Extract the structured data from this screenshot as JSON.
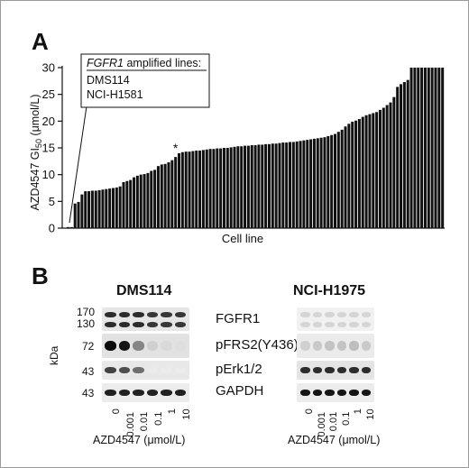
{
  "panel_a": {
    "letter": "A",
    "ylabel_main": "AZD4547 GI",
    "ylabel_sub": "50",
    "ylabel_unit": " (μmol/L)",
    "xlabel": "Cell line",
    "y_ticks": [
      "0",
      "5",
      "10",
      "15",
      "20",
      "25",
      "30"
    ],
    "asterisk": "*",
    "callout": {
      "title_gene": "FGFR1",
      "title_rest": " amplified lines:",
      "lines": [
        "DMS114",
        "NCI-H1581"
      ]
    }
  },
  "chart_data": {
    "type": "bar",
    "title": "",
    "xlabel": "Cell line",
    "ylabel": "AZD4547 GI50 (μmol/L)",
    "ylim": [
      0,
      30
    ],
    "asterisk_index": 31,
    "values": [
      0.2,
      0.2,
      4.6,
      4.9,
      6.3,
      6.9,
      6.9,
      7.0,
      7.0,
      7.1,
      7.2,
      7.3,
      7.4,
      7.5,
      7.6,
      7.8,
      8.6,
      8.8,
      9.0,
      9.5,
      9.8,
      10.0,
      10.1,
      10.3,
      10.7,
      10.9,
      11.6,
      11.9,
      12.0,
      12.3,
      12.7,
      13.3,
      14.0,
      14.2,
      14.3,
      14.3,
      14.4,
      14.5,
      14.5,
      14.6,
      14.7,
      14.8,
      14.8,
      14.9,
      14.9,
      15.0,
      15.0,
      15.1,
      15.2,
      15.3,
      15.3,
      15.4,
      15.4,
      15.5,
      15.5,
      15.6,
      15.6,
      15.7,
      15.7,
      15.8,
      15.8,
      15.9,
      16.0,
      16.0,
      16.1,
      16.1,
      16.2,
      16.3,
      16.4,
      16.5,
      16.6,
      16.7,
      16.8,
      16.9,
      17.0,
      17.2,
      17.4,
      17.6,
      18.0,
      18.4,
      19.0,
      19.5,
      19.9,
      20.1,
      20.4,
      20.8,
      21.1,
      21.3,
      21.5,
      21.7,
      22.1,
      22.5,
      23.0,
      23.5,
      24.5,
      26.4,
      26.9,
      27.3,
      27.7,
      30,
      30,
      30,
      30,
      30,
      30,
      30,
      30,
      30,
      30
    ]
  },
  "panel_b": {
    "letter": "B",
    "left_title": "DMS114",
    "right_title": "NCI-H1975",
    "kda_label": "kDa",
    "markers": [
      "170",
      "130",
      "72",
      "43",
      "43"
    ],
    "proteins": [
      "FGFR1",
      "pFRS2(Y436)",
      "pErk1/2",
      "GAPDH"
    ],
    "doses": [
      "0",
      "0.001",
      "0.01",
      "0.1",
      "1",
      "10"
    ],
    "xlabel": "AZD4547 (μmol/L)",
    "left_intensity": {
      "FGFR1": [
        0.85,
        0.85,
        0.85,
        0.8,
        0.8,
        0.8
      ],
      "pFRS2": [
        1.0,
        0.95,
        0.45,
        0.12,
        0.08,
        0.06
      ],
      "pErk": [
        0.75,
        0.7,
        0.55,
        0.0,
        0.0,
        0.0
      ],
      "GAPDH": [
        0.9,
        0.9,
        0.9,
        0.9,
        0.9,
        0.9
      ]
    },
    "right_intensity": {
      "FGFR1": [
        0.1,
        0.1,
        0.1,
        0.1,
        0.1,
        0.1
      ],
      "pFRS2": [
        0.12,
        0.15,
        0.18,
        0.18,
        0.2,
        0.15
      ],
      "pErk": [
        0.85,
        0.85,
        0.85,
        0.85,
        0.85,
        0.85
      ],
      "GAPDH": [
        0.95,
        0.95,
        0.95,
        0.95,
        0.95,
        0.95
      ]
    }
  }
}
